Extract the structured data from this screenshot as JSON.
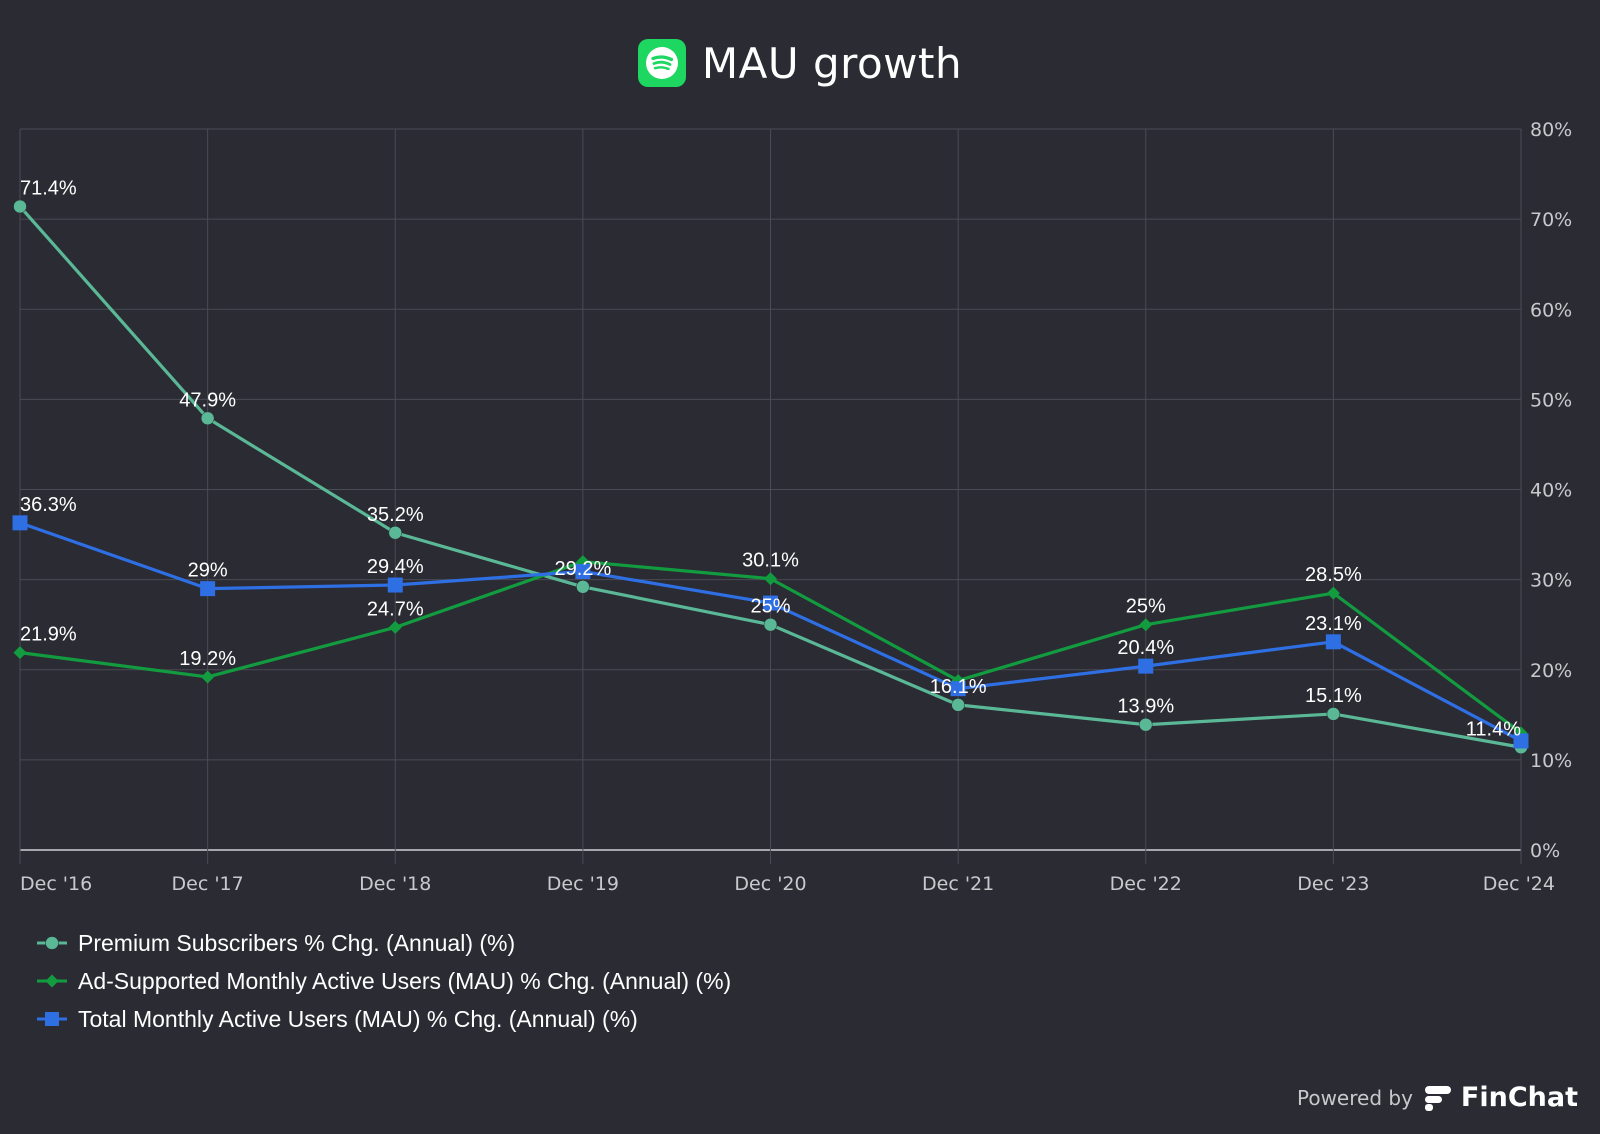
{
  "header": {
    "logo_icon": "spotify-logo-icon",
    "title": "MAU growth"
  },
  "chart_data": {
    "type": "line",
    "title": "MAU growth",
    "xlabel": "",
    "ylabel": "",
    "categories": [
      "Dec '16",
      "Dec '17",
      "Dec '18",
      "Dec '19",
      "Dec '20",
      "Dec '21",
      "Dec '22",
      "Dec '23",
      "Dec '24"
    ],
    "ylim": [
      0,
      80
    ],
    "y_ticks": [
      "0%",
      "10%",
      "20%",
      "30%",
      "40%",
      "50%",
      "60%",
      "70%",
      "80%"
    ],
    "y_axis_side": "right",
    "grid": true,
    "legend_position": "bottom-left",
    "series": [
      {
        "name": "Premium Subscribers % Chg. (Annual) (%)",
        "color": "#5bb896",
        "marker": "circle",
        "values": [
          71.4,
          47.9,
          35.2,
          29.2,
          25.0,
          16.1,
          13.9,
          15.1,
          11.4
        ],
        "labels": [
          "71.4%",
          "47.9%",
          "35.2%",
          "29.2%",
          "25%",
          "16.1%",
          "13.9%",
          "15.1%",
          "11.4%"
        ]
      },
      {
        "name": "Ad-Supported Monthly Active Users (MAU) % Chg. (Annual) (%)",
        "color": "#129c3f",
        "marker": "diamond",
        "values": [
          21.9,
          19.2,
          24.7,
          32.0,
          30.1,
          18.8,
          25.0,
          28.5,
          13.0
        ],
        "labels": [
          "21.9%",
          "19.2%",
          "24.7%",
          "",
          "30.1%",
          "",
          "25%",
          "28.5%",
          ""
        ]
      },
      {
        "name": "Total Monthly Active Users (MAU) % Chg. (Annual) (%)",
        "color": "#2f6fe4",
        "marker": "square",
        "values": [
          36.3,
          29.0,
          29.4,
          30.9,
          27.4,
          17.9,
          20.4,
          23.1,
          12.1
        ],
        "labels": [
          "36.3%",
          "29%",
          "29.4%",
          "",
          "",
          "",
          "20.4%",
          "23.1%",
          ""
        ]
      }
    ]
  },
  "footer": {
    "powered_by": "Powered by",
    "brand": "FinChat",
    "brand_icon": "finchat-logo-icon"
  }
}
